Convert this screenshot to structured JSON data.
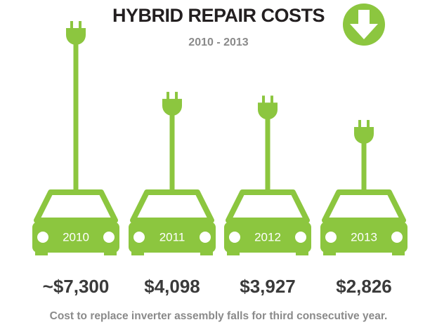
{
  "chart_data": {
    "type": "bar",
    "title": "HYBRID REPAIR COSTS",
    "subtitle": "2010 - 2013",
    "categories": [
      "2010",
      "2011",
      "2012",
      "2013"
    ],
    "values": [
      7300,
      4098,
      3927,
      2826
    ],
    "value_labels": [
      "~$7,300",
      "$4,098",
      "$3,927",
      "$2,826"
    ],
    "color": "#8cc63f",
    "caption": "Cost to replace inverter assembly falls for third consecutive year."
  }
}
